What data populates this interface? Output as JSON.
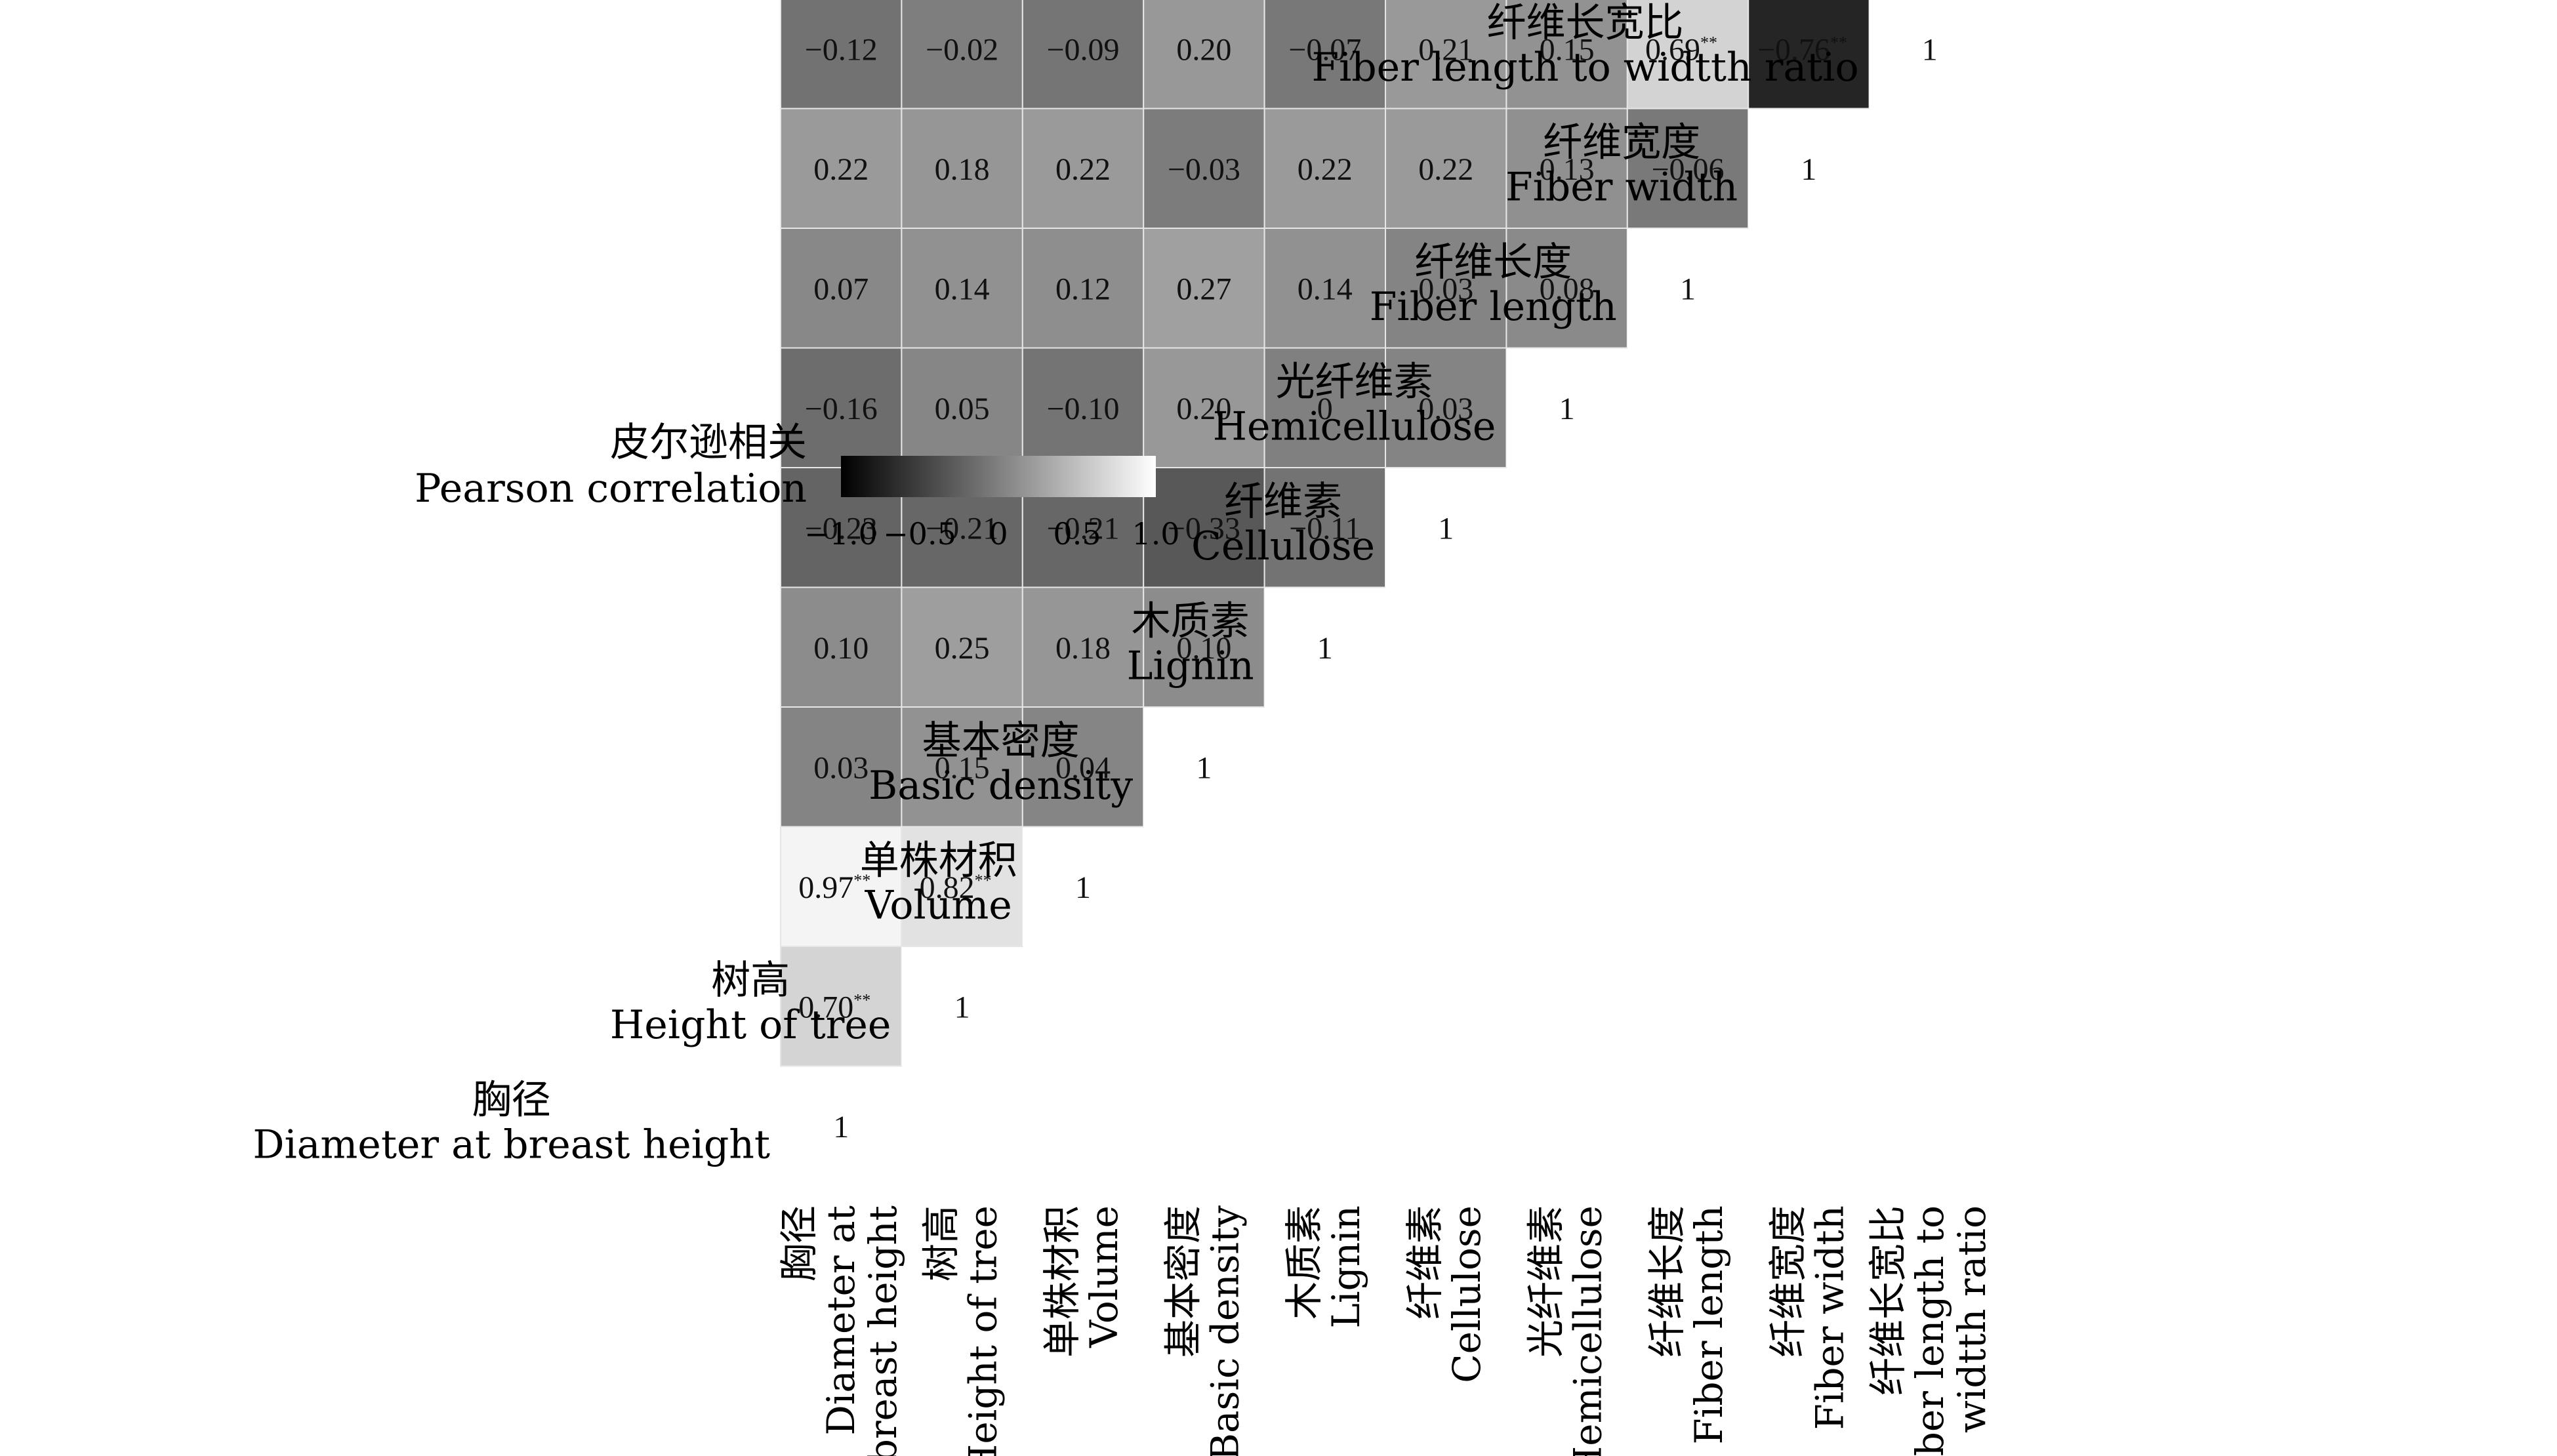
{
  "chart_data": {
    "type": "heatmap",
    "variables": [
      {
        "zh": "胸径",
        "en": "Diameter at breast height",
        "en_col": [
          "Diameter at",
          "breast height"
        ]
      },
      {
        "zh": "树高",
        "en": "Height of tree",
        "en_col": [
          "Height of tree"
        ]
      },
      {
        "zh": "单株材积",
        "en": "Volume",
        "en_col": [
          "Volume"
        ]
      },
      {
        "zh": "基本密度",
        "en": "Basic density",
        "en_col": [
          "Basic density"
        ]
      },
      {
        "zh": "木质素",
        "en": "Lignin",
        "en_col": [
          "Lignin"
        ]
      },
      {
        "zh": "纤维素",
        "en": "Cellulose",
        "en_col": [
          "Cellulose"
        ]
      },
      {
        "zh": "光纤维素",
        "en": "Hemicellulose",
        "en_col": [
          "Hemicellulose"
        ]
      },
      {
        "zh": "纤维长度",
        "en": "Fiber length",
        "en_col": [
          "Fiber length"
        ]
      },
      {
        "zh": "纤维宽度",
        "en": "Fiber width",
        "en_col": [
          "Fiber width"
        ]
      },
      {
        "zh": "纤维长宽比",
        "en": "Fiber length to widtth ratio",
        "en_col": [
          "Fiber length to",
          "widtth ratio"
        ]
      }
    ],
    "cells": [
      [
        {
          "v": "1"
        }
      ],
      [
        {
          "v": "0.70",
          "sig": "**"
        },
        {
          "v": "1"
        }
      ],
      [
        {
          "v": "0.97",
          "sig": "**"
        },
        {
          "v": "0.82",
          "sig": "**"
        },
        {
          "v": "1"
        }
      ],
      [
        {
          "v": "0.03"
        },
        {
          "v": "0.15"
        },
        {
          "v": "0.04"
        },
        {
          "v": "1"
        }
      ],
      [
        {
          "v": "0.10"
        },
        {
          "v": "0.25"
        },
        {
          "v": "0.18"
        },
        {
          "v": "0.10"
        },
        {
          "v": "1"
        }
      ],
      [
        {
          "v": "−0.23"
        },
        {
          "v": "−0.21"
        },
        {
          "v": "−0.21"
        },
        {
          "v": "−0.33"
        },
        {
          "v": "−0.11"
        },
        {
          "v": "1"
        }
      ],
      [
        {
          "v": "−0.16"
        },
        {
          "v": "0.05"
        },
        {
          "v": "−0.10"
        },
        {
          "v": "0.20"
        },
        {
          "v": "0"
        },
        {
          "v": "0.03"
        },
        {
          "v": "1"
        }
      ],
      [
        {
          "v": "0.07"
        },
        {
          "v": "0.14"
        },
        {
          "v": "0.12"
        },
        {
          "v": "0.27"
        },
        {
          "v": "0.14"
        },
        {
          "v": "0.03"
        },
        {
          "v": "0.08"
        },
        {
          "v": "1"
        }
      ],
      [
        {
          "v": "0.22"
        },
        {
          "v": "0.18"
        },
        {
          "v": "0.22"
        },
        {
          "v": "−0.03"
        },
        {
          "v": "0.22"
        },
        {
          "v": "0.22"
        },
        {
          "v": "0.13"
        },
        {
          "v": "−0.06"
        },
        {
          "v": "1"
        }
      ],
      [
        {
          "v": "−0.12"
        },
        {
          "v": "−0.02"
        },
        {
          "v": "−0.09"
        },
        {
          "v": "0.20"
        },
        {
          "v": "−0.07"
        },
        {
          "v": "0.21"
        },
        {
          "v": "0.15"
        },
        {
          "v": "0.69",
          "sig": "**"
        },
        {
          "v": "−0.76",
          "sig": "**"
        },
        {
          "v": "1"
        }
      ]
    ],
    "legend": {
      "title_zh": "皮尔逊相关",
      "title_en": "Pearson correlation",
      "ticks": [
        "−1.0",
        "−0.5",
        "0",
        "0.5",
        "1.0"
      ],
      "range": [
        -1.0,
        1.0
      ],
      "colors": [
        "#000000",
        "#ffffff"
      ]
    },
    "diagonal_fill": "#ffffff"
  }
}
